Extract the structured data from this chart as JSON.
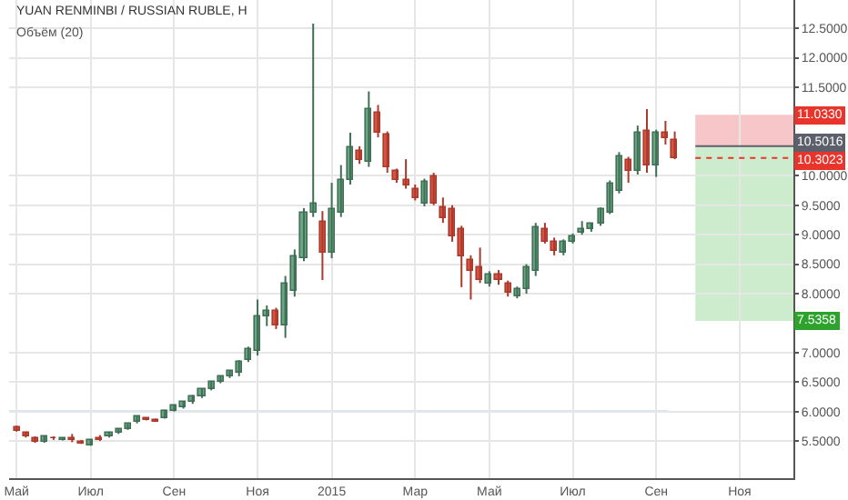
{
  "chart_data": {
    "type": "candlestick",
    "title": "YUAN RENMINBI / RUSSIAN RUBLE, H",
    "subtitle": "Объём (20)",
    "categories": [
      "Май",
      null,
      null,
      null,
      null,
      null,
      null,
      null,
      "Июл",
      null,
      null,
      null,
      null,
      null,
      null,
      null,
      null,
      "Сен",
      null,
      null,
      null,
      null,
      null,
      null,
      null,
      null,
      "Ноя",
      null,
      null,
      null,
      null,
      null,
      null,
      null,
      "2015",
      null,
      null,
      null,
      null,
      null,
      null,
      null,
      null,
      "Мар",
      null,
      null,
      null,
      null,
      null,
      null,
      null,
      "Май",
      null,
      null,
      null,
      null,
      null,
      null,
      null,
      null,
      "Июл",
      null,
      null,
      null,
      null,
      null,
      null,
      null,
      null,
      "Сен",
      null,
      null,
      null,
      null,
      null,
      null,
      null,
      null,
      "Ноя",
      null,
      null,
      null,
      null,
      null
    ],
    "ohlc": [
      [
        5.74,
        5.76,
        5.66,
        5.68
      ],
      [
        5.63,
        5.66,
        5.56,
        5.58
      ],
      [
        5.56,
        5.58,
        5.47,
        5.5
      ],
      [
        5.49,
        5.58,
        5.47,
        5.57
      ],
      [
        5.56,
        5.58,
        5.52,
        5.54
      ],
      [
        5.52,
        5.56,
        5.51,
        5.54
      ],
      [
        5.56,
        5.62,
        5.48,
        5.52
      ],
      [
        5.5,
        5.52,
        5.45,
        5.47
      ],
      [
        5.44,
        5.53,
        5.42,
        5.52
      ],
      [
        5.55,
        5.6,
        5.5,
        5.52
      ],
      [
        5.58,
        5.66,
        5.56,
        5.65
      ],
      [
        5.63,
        5.71,
        5.62,
        5.7
      ],
      [
        5.7,
        5.79,
        5.69,
        5.78
      ],
      [
        5.82,
        5.93,
        5.8,
        5.92
      ],
      [
        5.88,
        5.9,
        5.85,
        5.86
      ],
      [
        5.87,
        5.88,
        5.83,
        5.84
      ],
      [
        5.9,
        6.03,
        5.88,
        6.02
      ],
      [
        6.02,
        6.11,
        6.0,
        6.1
      ],
      [
        6.07,
        6.18,
        6.05,
        6.17
      ],
      [
        6.15,
        6.28,
        6.13,
        6.27
      ],
      [
        6.25,
        6.39,
        6.23,
        6.38
      ],
      [
        6.38,
        6.51,
        6.36,
        6.5
      ],
      [
        6.5,
        6.61,
        6.48,
        6.6
      ],
      [
        6.6,
        6.69,
        6.57,
        6.68
      ],
      [
        6.65,
        6.87,
        6.6,
        6.85
      ],
      [
        6.87,
        7.1,
        6.84,
        7.05
      ],
      [
        7.03,
        7.9,
        6.95,
        7.63
      ],
      [
        7.62,
        7.8,
        7.45,
        7.72
      ],
      [
        7.7,
        7.76,
        7.4,
        7.45
      ],
      [
        7.45,
        8.3,
        7.25,
        8.18
      ],
      [
        8.05,
        8.75,
        7.95,
        8.63
      ],
      [
        8.6,
        9.45,
        8.55,
        9.38
      ],
      [
        9.38,
        12.58,
        9.3,
        9.53
      ],
      [
        9.23,
        9.4,
        8.23,
        8.68
      ],
      [
        8.68,
        9.88,
        8.6,
        9.43
      ],
      [
        9.38,
        10.18,
        9.3,
        9.93
      ],
      [
        9.93,
        10.73,
        9.85,
        10.48
      ],
      [
        10.43,
        10.5,
        10.2,
        10.28
      ],
      [
        10.23,
        11.43,
        10.15,
        11.13
      ],
      [
        11.08,
        11.2,
        10.65,
        10.73
      ],
      [
        10.7,
        10.75,
        10.05,
        10.13
      ],
      [
        10.08,
        10.12,
        9.88,
        9.93
      ],
      [
        9.93,
        10.28,
        9.78,
        9.83
      ],
      [
        9.78,
        9.85,
        9.58,
        9.63
      ],
      [
        9.53,
        9.95,
        9.48,
        9.9
      ],
      [
        9.98,
        10.05,
        9.5,
        9.53
      ],
      [
        9.48,
        9.63,
        9.2,
        9.28
      ],
      [
        9.43,
        9.5,
        8.88,
        8.98
      ],
      [
        9.08,
        9.15,
        8.11,
        8.63
      ],
      [
        8.58,
        8.65,
        7.9,
        8.38
      ],
      [
        8.46,
        8.78,
        8.18,
        8.23
      ],
      [
        8.18,
        8.38,
        8.12,
        8.33
      ],
      [
        8.33,
        8.4,
        8.15,
        8.23
      ],
      [
        8.16,
        8.22,
        7.95,
        8.01
      ],
      [
        7.96,
        8.12,
        7.92,
        8.08
      ],
      [
        8.08,
        8.5,
        8.0,
        8.46
      ],
      [
        8.38,
        9.2,
        8.3,
        9.13
      ],
      [
        9.08,
        9.2,
        8.85,
        8.88
      ],
      [
        8.88,
        8.95,
        8.65,
        8.73
      ],
      [
        8.7,
        8.92,
        8.65,
        8.88
      ],
      [
        8.88,
        9.02,
        8.85,
        8.98
      ],
      [
        9.03,
        9.23,
        9.0,
        9.08
      ],
      [
        9.08,
        9.2,
        9.05,
        9.18
      ],
      [
        9.18,
        9.46,
        9.15,
        9.43
      ],
      [
        9.38,
        9.92,
        9.35,
        9.88
      ],
      [
        9.73,
        10.4,
        9.7,
        10.33
      ],
      [
        10.28,
        10.32,
        9.88,
        10.08
      ],
      [
        10.08,
        10.85,
        10.02,
        10.73
      ],
      [
        10.76,
        11.13,
        10.05,
        10.18
      ],
      [
        10.18,
        10.78,
        9.98,
        10.73
      ],
      [
        10.73,
        10.93,
        10.53,
        10.63
      ],
      [
        10.6,
        10.75,
        10.28,
        10.3
      ],
      null,
      null,
      null,
      null,
      null,
      null,
      null,
      null,
      null,
      null,
      null,
      null
    ],
    "ylim": [
      4.87,
      12.98
    ],
    "yticks": [
      {
        "value": 5.5,
        "label": "5.5000"
      },
      {
        "value": 6,
        "label": "6.0000"
      },
      {
        "value": 6.5,
        "label": "6.5000"
      },
      {
        "value": 7,
        "label": "7.0000"
      },
      {
        "value": 8,
        "label": "8.0000"
      },
      {
        "value": 8.5,
        "label": "8.5000"
      },
      {
        "value": 9,
        "label": "9.0000"
      },
      {
        "value": 9.5,
        "label": "9.5000"
      },
      {
        "value": 10,
        "label": "10.0000"
      },
      {
        "value": 11.5,
        "label": "11.5000"
      },
      {
        "value": 12,
        "label": "12.0000"
      },
      {
        "value": 12.5,
        "label": "12.5000"
      }
    ],
    "grid": true,
    "ref_lines": [
      {
        "axis": "y",
        "value": 6.0,
        "color": "#a9d3e8"
      },
      {
        "axis": "y",
        "value": 10.5016,
        "label": "10.5016",
        "color": "#5d606b"
      },
      {
        "axis": "y",
        "value": 10.3023,
        "label": "10.3023",
        "color": "#e8342b",
        "line_style": "dotted"
      }
    ],
    "bands": [
      {
        "axis": "y",
        "from": 10.5016,
        "to": 11.033,
        "label": "11.0330",
        "color": "#f7c6c9"
      },
      {
        "axis": "y",
        "from": 7.5358,
        "to": 10.5016,
        "label": "7.5358",
        "color": "#cdeccd"
      }
    ]
  }
}
